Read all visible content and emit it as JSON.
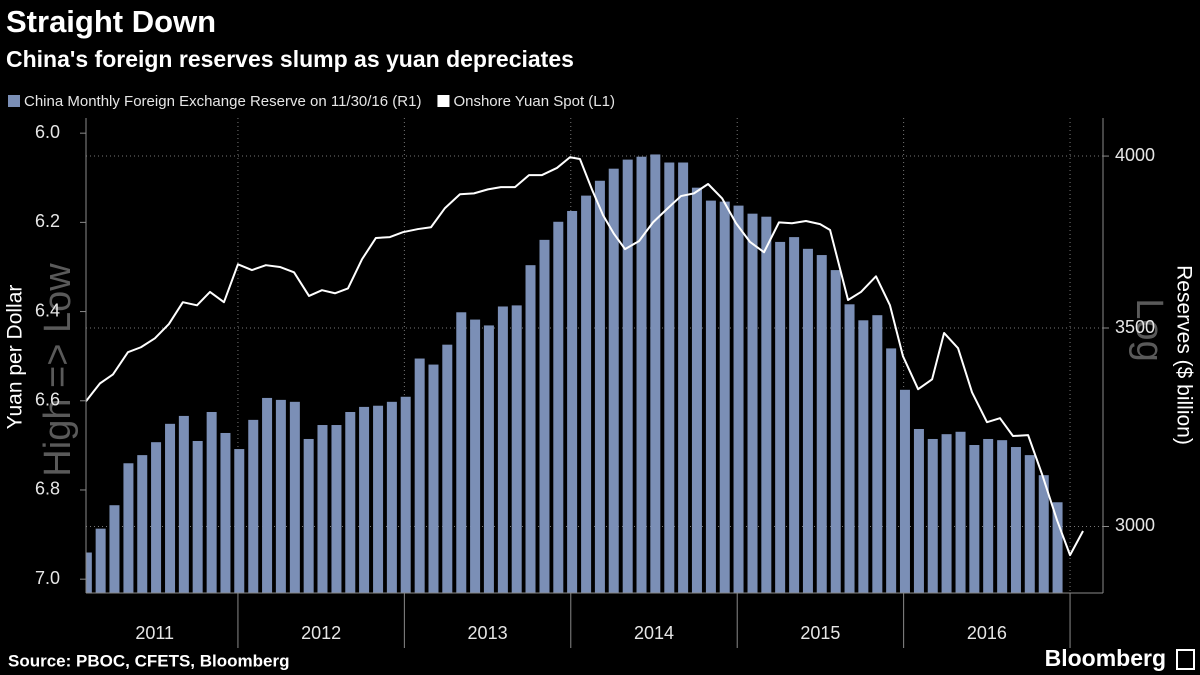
{
  "title": "Straight Down",
  "subtitle": "China's foreign reserves slump as yuan depreciates",
  "source": "Source: PBOC, CFETS, Bloomberg",
  "brand": "Bloomberg",
  "chart_data": {
    "type": "combo",
    "ylabel": "Yuan per Dollar",
    "y2label": "Reserves ($ billion)",
    "y_annotation": "High => Low",
    "y2_annotation": "Log",
    "xlim": [
      2011.087,
      2017.198
    ],
    "xticks": [
      2011,
      2012,
      2013,
      2014,
      2015,
      2016
    ],
    "ylim": [
      5.966,
      7.031
    ],
    "y_inverted": true,
    "yticks": [
      {
        "value": 6,
        "label": "6.0"
      },
      6.2,
      6.4,
      6.6,
      6.8,
      {
        "value": 7,
        "label": "7.0"
      }
    ],
    "y2lim": [
      2849,
      4120
    ],
    "y2scale": "log",
    "y2ticks": [
      3000,
      3500,
      4000
    ],
    "grid": true,
    "series": [
      {
        "name": "China Monthly Foreign Exchange Reserve on 11/30/16 (R1)",
        "type": "bar",
        "axis": "y2",
        "color": "#7b8fb6",
        "x": [
          2011.092,
          2011.175,
          2011.258,
          2011.342,
          2011.425,
          2011.508,
          2011.592,
          2011.675,
          2011.758,
          2011.842,
          2011.925,
          2012.008,
          2012.092,
          2012.175,
          2012.258,
          2012.342,
          2012.425,
          2012.508,
          2012.592,
          2012.675,
          2012.758,
          2012.842,
          2012.925,
          2013.008,
          2013.092,
          2013.175,
          2013.258,
          2013.342,
          2013.425,
          2013.508,
          2013.592,
          2013.675,
          2013.758,
          2013.842,
          2013.925,
          2014.008,
          2014.092,
          2014.175,
          2014.258,
          2014.342,
          2014.425,
          2014.508,
          2014.592,
          2014.675,
          2014.758,
          2014.842,
          2014.925,
          2015.008,
          2015.092,
          2015.175,
          2015.258,
          2015.342,
          2015.425,
          2015.508,
          2015.592,
          2015.675,
          2015.758,
          2015.842,
          2015.925,
          2016.008,
          2016.092,
          2016.175,
          2016.258,
          2016.342,
          2016.425,
          2016.508,
          2016.592,
          2016.675,
          2016.758,
          2016.842,
          2016.925
        ],
        "values": [
          2940,
          2995,
          3050,
          3151,
          3171,
          3203,
          3249,
          3269,
          3206,
          3279,
          3226,
          3186,
          3259,
          3315,
          3310,
          3305,
          3211,
          3246,
          3246,
          3279,
          3292,
          3295,
          3305,
          3318,
          3418,
          3402,
          3455,
          3543,
          3523,
          3507,
          3559,
          3562,
          3675,
          3748,
          3801,
          3833,
          3879,
          3924,
          3961,
          3989,
          3998,
          4005,
          3980,
          3980,
          3903,
          3864,
          3861,
          3849,
          3825,
          3816,
          3742,
          3756,
          3722,
          3704,
          3661,
          3565,
          3521,
          3535,
          3445,
          3336,
          3236,
          3211,
          3223,
          3229,
          3196,
          3211,
          3208,
          3191,
          3171,
          3122,
          3057
        ]
      },
      {
        "name": "Onshore Yuan Spot (L1)",
        "type": "line",
        "axis": "y",
        "color": "#ffffff",
        "x": [
          2011.087,
          2011.129,
          2011.171,
          2011.249,
          2011.339,
          2011.417,
          2011.501,
          2011.585,
          2011.669,
          2011.754,
          2011.832,
          2011.916,
          2012.0,
          2012.084,
          2012.168,
          2012.252,
          2012.337,
          2012.427,
          2012.505,
          2012.583,
          2012.661,
          2012.745,
          2012.829,
          2012.913,
          2012.991,
          2013.082,
          2013.16,
          2013.244,
          2013.334,
          2013.418,
          2013.502,
          2013.58,
          2013.665,
          2013.749,
          2013.827,
          2013.917,
          2013.995,
          2014.055,
          2014.127,
          2014.194,
          2014.26,
          2014.326,
          2014.41,
          2014.494,
          2014.578,
          2014.662,
          2014.74,
          2014.825,
          2014.909,
          2014.993,
          2015.077,
          2015.161,
          2015.251,
          2015.329,
          2015.413,
          2015.498,
          2015.558,
          2015.666,
          2015.744,
          2015.834,
          2015.918,
          2015.996,
          2016.087,
          2016.171,
          2016.243,
          2016.327,
          2016.411,
          2016.501,
          2016.579,
          2016.657,
          2016.748,
          2016.832,
          2016.922,
          2017.0,
          2017.078
        ],
        "values": [
          6.601,
          6.581,
          6.561,
          6.541,
          6.491,
          6.48,
          6.46,
          6.428,
          6.379,
          6.386,
          6.356,
          6.379,
          6.294,
          6.307,
          6.296,
          6.3,
          6.312,
          6.365,
          6.352,
          6.359,
          6.348,
          6.283,
          6.235,
          6.233,
          6.222,
          6.215,
          6.211,
          6.168,
          6.137,
          6.135,
          6.126,
          6.121,
          6.121,
          6.094,
          6.094,
          6.078,
          6.054,
          6.058,
          6.126,
          6.184,
          6.226,
          6.26,
          6.242,
          6.2,
          6.17,
          6.141,
          6.135,
          6.114,
          6.146,
          6.202,
          6.244,
          6.267,
          6.2,
          6.202,
          6.197,
          6.204,
          6.217,
          6.374,
          6.356,
          6.321,
          6.386,
          6.5,
          6.574,
          6.552,
          6.448,
          6.482,
          6.581,
          6.648,
          6.639,
          6.679,
          6.677,
          6.765,
          6.868,
          6.946,
          6.892
        ]
      }
    ]
  }
}
